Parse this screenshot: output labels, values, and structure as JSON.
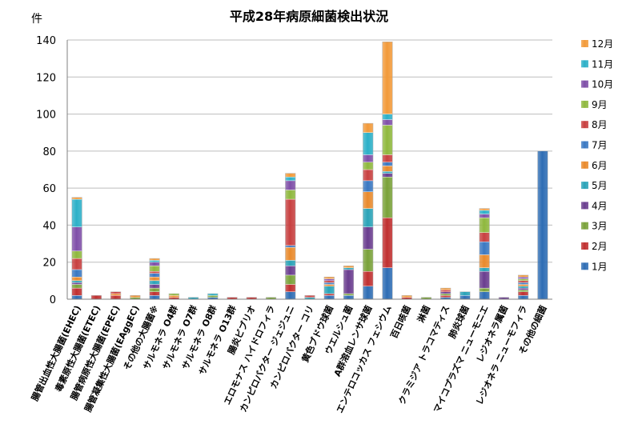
{
  "chart_data": {
    "type": "bar",
    "stacked": true,
    "title": "平成28年病原細菌検出状況",
    "ylabel": "件",
    "xlabel": "",
    "ylim": [
      0,
      140
    ],
    "yticks": [
      0,
      20,
      40,
      60,
      80,
      100,
      120,
      140
    ],
    "grid": "horizontal",
    "legend_position": "right",
    "categories": [
      "腸管出血性大腸菌(EHEC)",
      "毒素原性大腸菌(ETEC)",
      "腸管病原性大腸菌(EPEC)",
      "腸管凝集性大腸菌(EAggEC)",
      "その他の大腸菌※",
      "サルモネラ O4群",
      "サルモネラ O7群",
      "サルモネラ O8群",
      "サルモネラ O13群",
      "腸炎ビブリオ",
      "エロモナス ハイドロフィラ",
      "カンピロバクター ジェジュニ",
      "カンピロバクター コリ",
      "黄色ブドウ球菌",
      "ウエルシュ菌",
      "A群溶血レンサ球菌",
      "エンテロコッカス フェシウム",
      "百日咳菌",
      "淋菌",
      "クラミジア トラコマティス",
      "肺炎球菌",
      "マイコプラズマ ニューモニエ",
      "レジオネラ属菌",
      "レジオネラ ニューモフィラ",
      "その他の細菌"
    ],
    "series": [
      {
        "name": "1月",
        "color": "#2e6db4",
        "values": [
          2,
          0,
          0,
          0,
          2,
          0,
          0,
          1,
          0,
          0,
          0,
          4,
          0,
          2,
          2,
          7,
          17,
          0,
          0,
          1,
          2,
          4,
          0,
          2,
          80
        ]
      },
      {
        "name": "2月",
        "color": "#c03030",
        "values": [
          4,
          2,
          2,
          0,
          2,
          1,
          0,
          0,
          1,
          1,
          0,
          4,
          0,
          1,
          0,
          8,
          27,
          1,
          0,
          1,
          0,
          0,
          0,
          2,
          0
        ]
      },
      {
        "name": "3月",
        "color": "#7aa23a",
        "values": [
          2,
          0,
          0,
          1,
          2,
          0,
          0,
          1,
          0,
          0,
          1,
          5,
          0,
          0,
          1,
          12,
          22,
          0,
          1,
          1,
          0,
          2,
          0,
          1,
          0
        ]
      },
      {
        "name": "4月",
        "color": "#6a3d8f",
        "values": [
          1,
          0,
          0,
          0,
          2,
          0,
          0,
          0,
          0,
          0,
          0,
          5,
          0,
          0,
          13,
          12,
          2,
          0,
          0,
          1,
          0,
          9,
          1,
          1,
          0
        ]
      },
      {
        "name": "5月",
        "color": "#2aa3b8",
        "values": [
          1,
          0,
          0,
          0,
          2,
          0,
          1,
          0,
          0,
          0,
          0,
          3,
          1,
          4,
          1,
          10,
          1,
          0,
          0,
          0,
          2,
          2,
          0,
          1,
          0
        ]
      },
      {
        "name": "6月",
        "color": "#e98a2c",
        "values": [
          2,
          0,
          1,
          1,
          2,
          1,
          0,
          0,
          0,
          0,
          0,
          7,
          0,
          1,
          0,
          9,
          3,
          0,
          0,
          0,
          0,
          7,
          0,
          1,
          0
        ]
      },
      {
        "name": "7月",
        "color": "#3a78c2",
        "values": [
          4,
          0,
          0,
          0,
          2,
          0,
          0,
          0,
          0,
          0,
          0,
          1,
          0,
          1,
          0,
          6,
          2,
          0,
          0,
          0,
          0,
          7,
          0,
          1,
          0
        ]
      },
      {
        "name": "8月",
        "color": "#c84040",
        "values": [
          6,
          0,
          1,
          0,
          1,
          0,
          0,
          0,
          0,
          0,
          0,
          25,
          1,
          1,
          0,
          6,
          4,
          0,
          0,
          1,
          0,
          5,
          0,
          1,
          0
        ]
      },
      {
        "name": "9月",
        "color": "#8fb83e",
        "values": [
          4,
          0,
          0,
          0,
          3,
          1,
          0,
          0,
          0,
          0,
          0,
          5,
          0,
          0,
          0,
          4,
          16,
          0,
          0,
          0,
          0,
          8,
          0,
          1,
          0
        ]
      },
      {
        "name": "10月",
        "color": "#7f4fa8",
        "values": [
          13,
          0,
          0,
          0,
          2,
          0,
          0,
          0,
          0,
          0,
          0,
          5,
          0,
          1,
          0,
          4,
          3,
          0,
          0,
          0,
          0,
          2,
          0,
          1,
          0
        ]
      },
      {
        "name": "11月",
        "color": "#2cb0c8",
        "values": [
          15,
          0,
          0,
          0,
          1,
          0,
          0,
          1,
          0,
          0,
          0,
          2,
          0,
          0,
          0,
          12,
          3,
          0,
          0,
          0,
          0,
          2,
          0,
          0,
          0
        ]
      },
      {
        "name": "12月",
        "color": "#f29a3a",
        "values": [
          1,
          0,
          0,
          0,
          1,
          0,
          0,
          0,
          0,
          0,
          0,
          2,
          0,
          1,
          1,
          5,
          39,
          1,
          0,
          1,
          0,
          1,
          0,
          1,
          0
        ]
      }
    ]
  }
}
